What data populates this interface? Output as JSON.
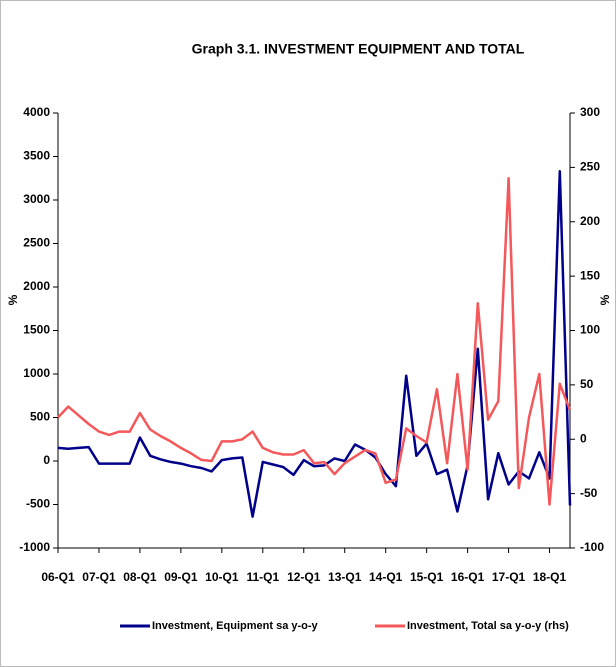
{
  "chart_data": {
    "type": "line",
    "title": "Graph 3.1. INVESTMENT EQUIPMENT AND TOTAL",
    "ylabel": "%",
    "y2label": "%",
    "categories": [
      "06-Q1",
      null,
      null,
      null,
      "07-Q1",
      null,
      null,
      null,
      "08-Q1",
      null,
      null,
      null,
      "09-Q1",
      null,
      null,
      null,
      "10-Q1",
      null,
      null,
      null,
      "11-Q1",
      null,
      null,
      null,
      "12-Q1",
      null,
      null,
      null,
      "13-Q1",
      null,
      null,
      null,
      "14-Q1",
      null,
      null,
      null,
      "15-Q1",
      null,
      null,
      null,
      "16-Q1",
      null,
      null,
      null,
      "17-Q1",
      null,
      null,
      null,
      "18-Q1",
      null,
      null
    ],
    "ylim": [
      -1000,
      4000
    ],
    "yticks": [
      -1000,
      -500,
      0,
      500,
      1000,
      1500,
      2000,
      2500,
      3000,
      3500,
      4000
    ],
    "y2lim": [
      -100,
      300
    ],
    "y2ticks": [
      -100,
      -50,
      0,
      50,
      100,
      150,
      200,
      250,
      300
    ],
    "legend": "bottom",
    "series": [
      {
        "name": "Investment, Equipment sa y-o-y",
        "color": "#00008b",
        "values": [
          150,
          140,
          150,
          160,
          -30,
          -30,
          -30,
          -30,
          270,
          60,
          20,
          -10,
          -30,
          -60,
          -80,
          -120,
          10,
          30,
          40,
          -640,
          -10,
          -40,
          -70,
          -160,
          10,
          -60,
          -50,
          30,
          0,
          190,
          130,
          40,
          -150,
          -290,
          980,
          60,
          200,
          -150,
          -100,
          -580,
          -50,
          1290,
          -440,
          90,
          -270,
          -120,
          -200,
          100,
          -200,
          3330,
          -510
        ]
      },
      {
        "name": "Investment, Total sa y-o-y (rhs)",
        "color": "#f4585a",
        "axis": "y2",
        "values": [
          20,
          30,
          22,
          14,
          7,
          4,
          7,
          7,
          24,
          9,
          3,
          -2,
          -8,
          -13,
          -19,
          -20,
          -2,
          -2,
          0,
          7,
          -8,
          -12,
          -14,
          -14,
          -10,
          -22,
          -21,
          -32,
          -22,
          -16,
          -10,
          -13,
          -40,
          -37,
          10,
          3,
          -3,
          46,
          -22,
          60,
          -28,
          125,
          18,
          35,
          240,
          -45,
          20,
          60,
          -60,
          51,
          27
        ]
      }
    ]
  }
}
